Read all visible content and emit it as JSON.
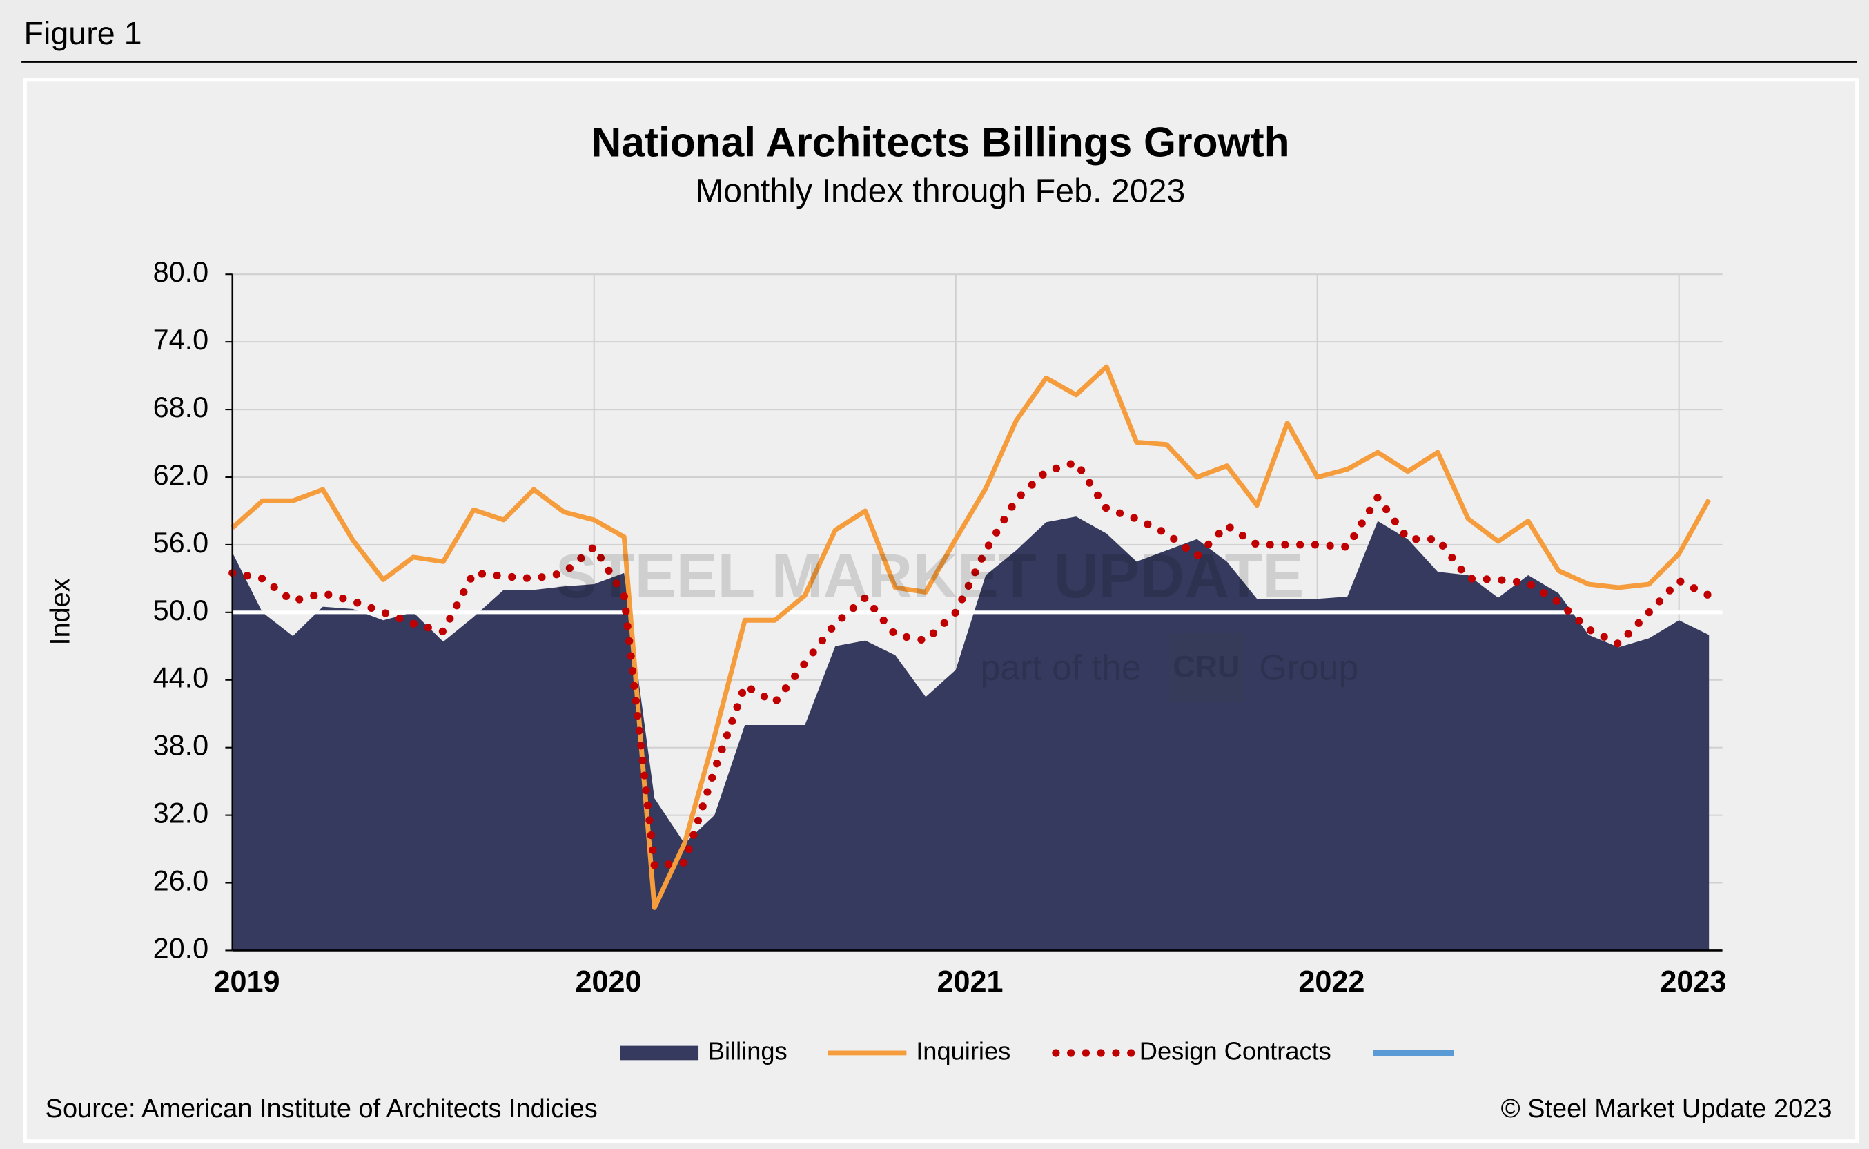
{
  "figure_label": "Figure 1",
  "source": "Source: American Institute of Architects Indicies",
  "copyright": "© Steel Market Update 2023",
  "watermark": {
    "brand": "STEEL MARKET UPDATE",
    "tagline_pre": "part of the",
    "logo": "CRU",
    "tagline_post": "Group"
  },
  "chart_data": {
    "type": "line",
    "title": "National Architects Billings Growth",
    "subtitle": "Monthly Index through Feb. 2023",
    "y_label": "Index",
    "x": [
      2019,
      2019.083,
      2019.167,
      2019.25,
      2019.333,
      2019.417,
      2019.5,
      2019.583,
      2019.667,
      2019.75,
      2019.833,
      2019.917,
      2020,
      2020.083,
      2020.167,
      2020.25,
      2020.333,
      2020.417,
      2020.5,
      2020.583,
      2020.667,
      2020.75,
      2020.833,
      2020.917,
      2021,
      2021.083,
      2021.167,
      2021.25,
      2021.333,
      2021.417,
      2021.5,
      2021.583,
      2021.667,
      2021.75,
      2021.833,
      2021.917,
      2022,
      2022.083,
      2022.167,
      2022.25,
      2022.333,
      2022.417,
      2022.5,
      2022.583,
      2022.667,
      2022.75,
      2022.833,
      2022.917,
      2023,
      2023.083
    ],
    "series": [
      {
        "name": "Billings",
        "style": "area",
        "color": "#363a5e",
        "values": [
          55.3,
          50.0,
          47.9,
          50.5,
          50.3,
          49.3,
          50.0,
          47.4,
          49.6,
          52.0,
          52.0,
          52.3,
          52.5,
          53.5,
          33.5,
          29.5,
          32.0,
          40.0,
          40.0,
          40.0,
          47.0,
          47.5,
          46.2,
          42.5,
          44.9,
          53.3,
          55.5,
          58.0,
          58.5,
          57.0,
          54.5,
          55.5,
          56.5,
          54.5,
          51.2,
          51.2,
          51.2,
          51.4,
          58.1,
          56.5,
          53.6,
          53.3,
          51.3,
          53.3,
          51.7,
          48.0,
          46.9,
          47.7,
          49.3,
          48.0
        ]
      },
      {
        "name": "Inquiries",
        "style": "line",
        "color": "#f59c3d",
        "values": [
          57.5,
          59.9,
          59.9,
          60.9,
          56.4,
          52.9,
          54.9,
          54.5,
          59.1,
          58.2,
          60.9,
          58.9,
          58.2,
          56.7,
          23.8,
          29.5,
          39.0,
          49.3,
          49.3,
          51.5,
          57.3,
          59.0,
          52.2,
          51.8,
          56.5,
          61.0,
          67.0,
          70.8,
          69.3,
          71.8,
          65.1,
          64.9,
          62.0,
          63.0,
          59.5,
          66.8,
          62.0,
          62.7,
          64.2,
          62.5,
          64.2,
          58.3,
          56.3,
          58.1,
          53.7,
          52.5,
          52.2,
          52.5,
          55.2,
          60.0
        ]
      },
      {
        "name": "Design Contracts",
        "style": "dotted",
        "color": "#c00000",
        "values": [
          53.5,
          53.0,
          51.0,
          51.7,
          51.0,
          50.0,
          49.0,
          48.3,
          53.5,
          53.2,
          53.0,
          53.5,
          55.8,
          51.5,
          27.5,
          27.8,
          36.0,
          43.5,
          42.0,
          45.5,
          49.0,
          51.3,
          48.0,
          47.5,
          50.0,
          55.5,
          60.0,
          62.5,
          63.3,
          59.2,
          58.3,
          57.0,
          55.0,
          57.7,
          56.0,
          56.0,
          56.0,
          55.8,
          60.2,
          56.5,
          56.5,
          53.0,
          52.9,
          52.6,
          50.9,
          48.5,
          47.2,
          50.0,
          52.8,
          51.5
        ]
      }
    ],
    "reference_line": 50,
    "xlim": [
      2019,
      2023.12
    ],
    "xticks": [
      2019,
      2020,
      2021,
      2022,
      2023
    ],
    "ylim": [
      20,
      80
    ],
    "yticks": [
      {
        "value": 20,
        "label": "20.0"
      },
      {
        "value": 26,
        "label": "26.0"
      },
      {
        "value": 32,
        "label": "32.0"
      },
      {
        "value": 38,
        "label": "38.0"
      },
      {
        "value": 44,
        "label": "44.0"
      },
      {
        "value": 50,
        "label": "50.0"
      },
      {
        "value": 56,
        "label": "56.0"
      },
      {
        "value": 62,
        "label": "62.0"
      },
      {
        "value": 68,
        "label": "68.0"
      },
      {
        "value": 74,
        "label": "74.0"
      },
      {
        "value": 80,
        "label": "80.0"
      }
    ],
    "grid": true,
    "legend": "bottom"
  }
}
